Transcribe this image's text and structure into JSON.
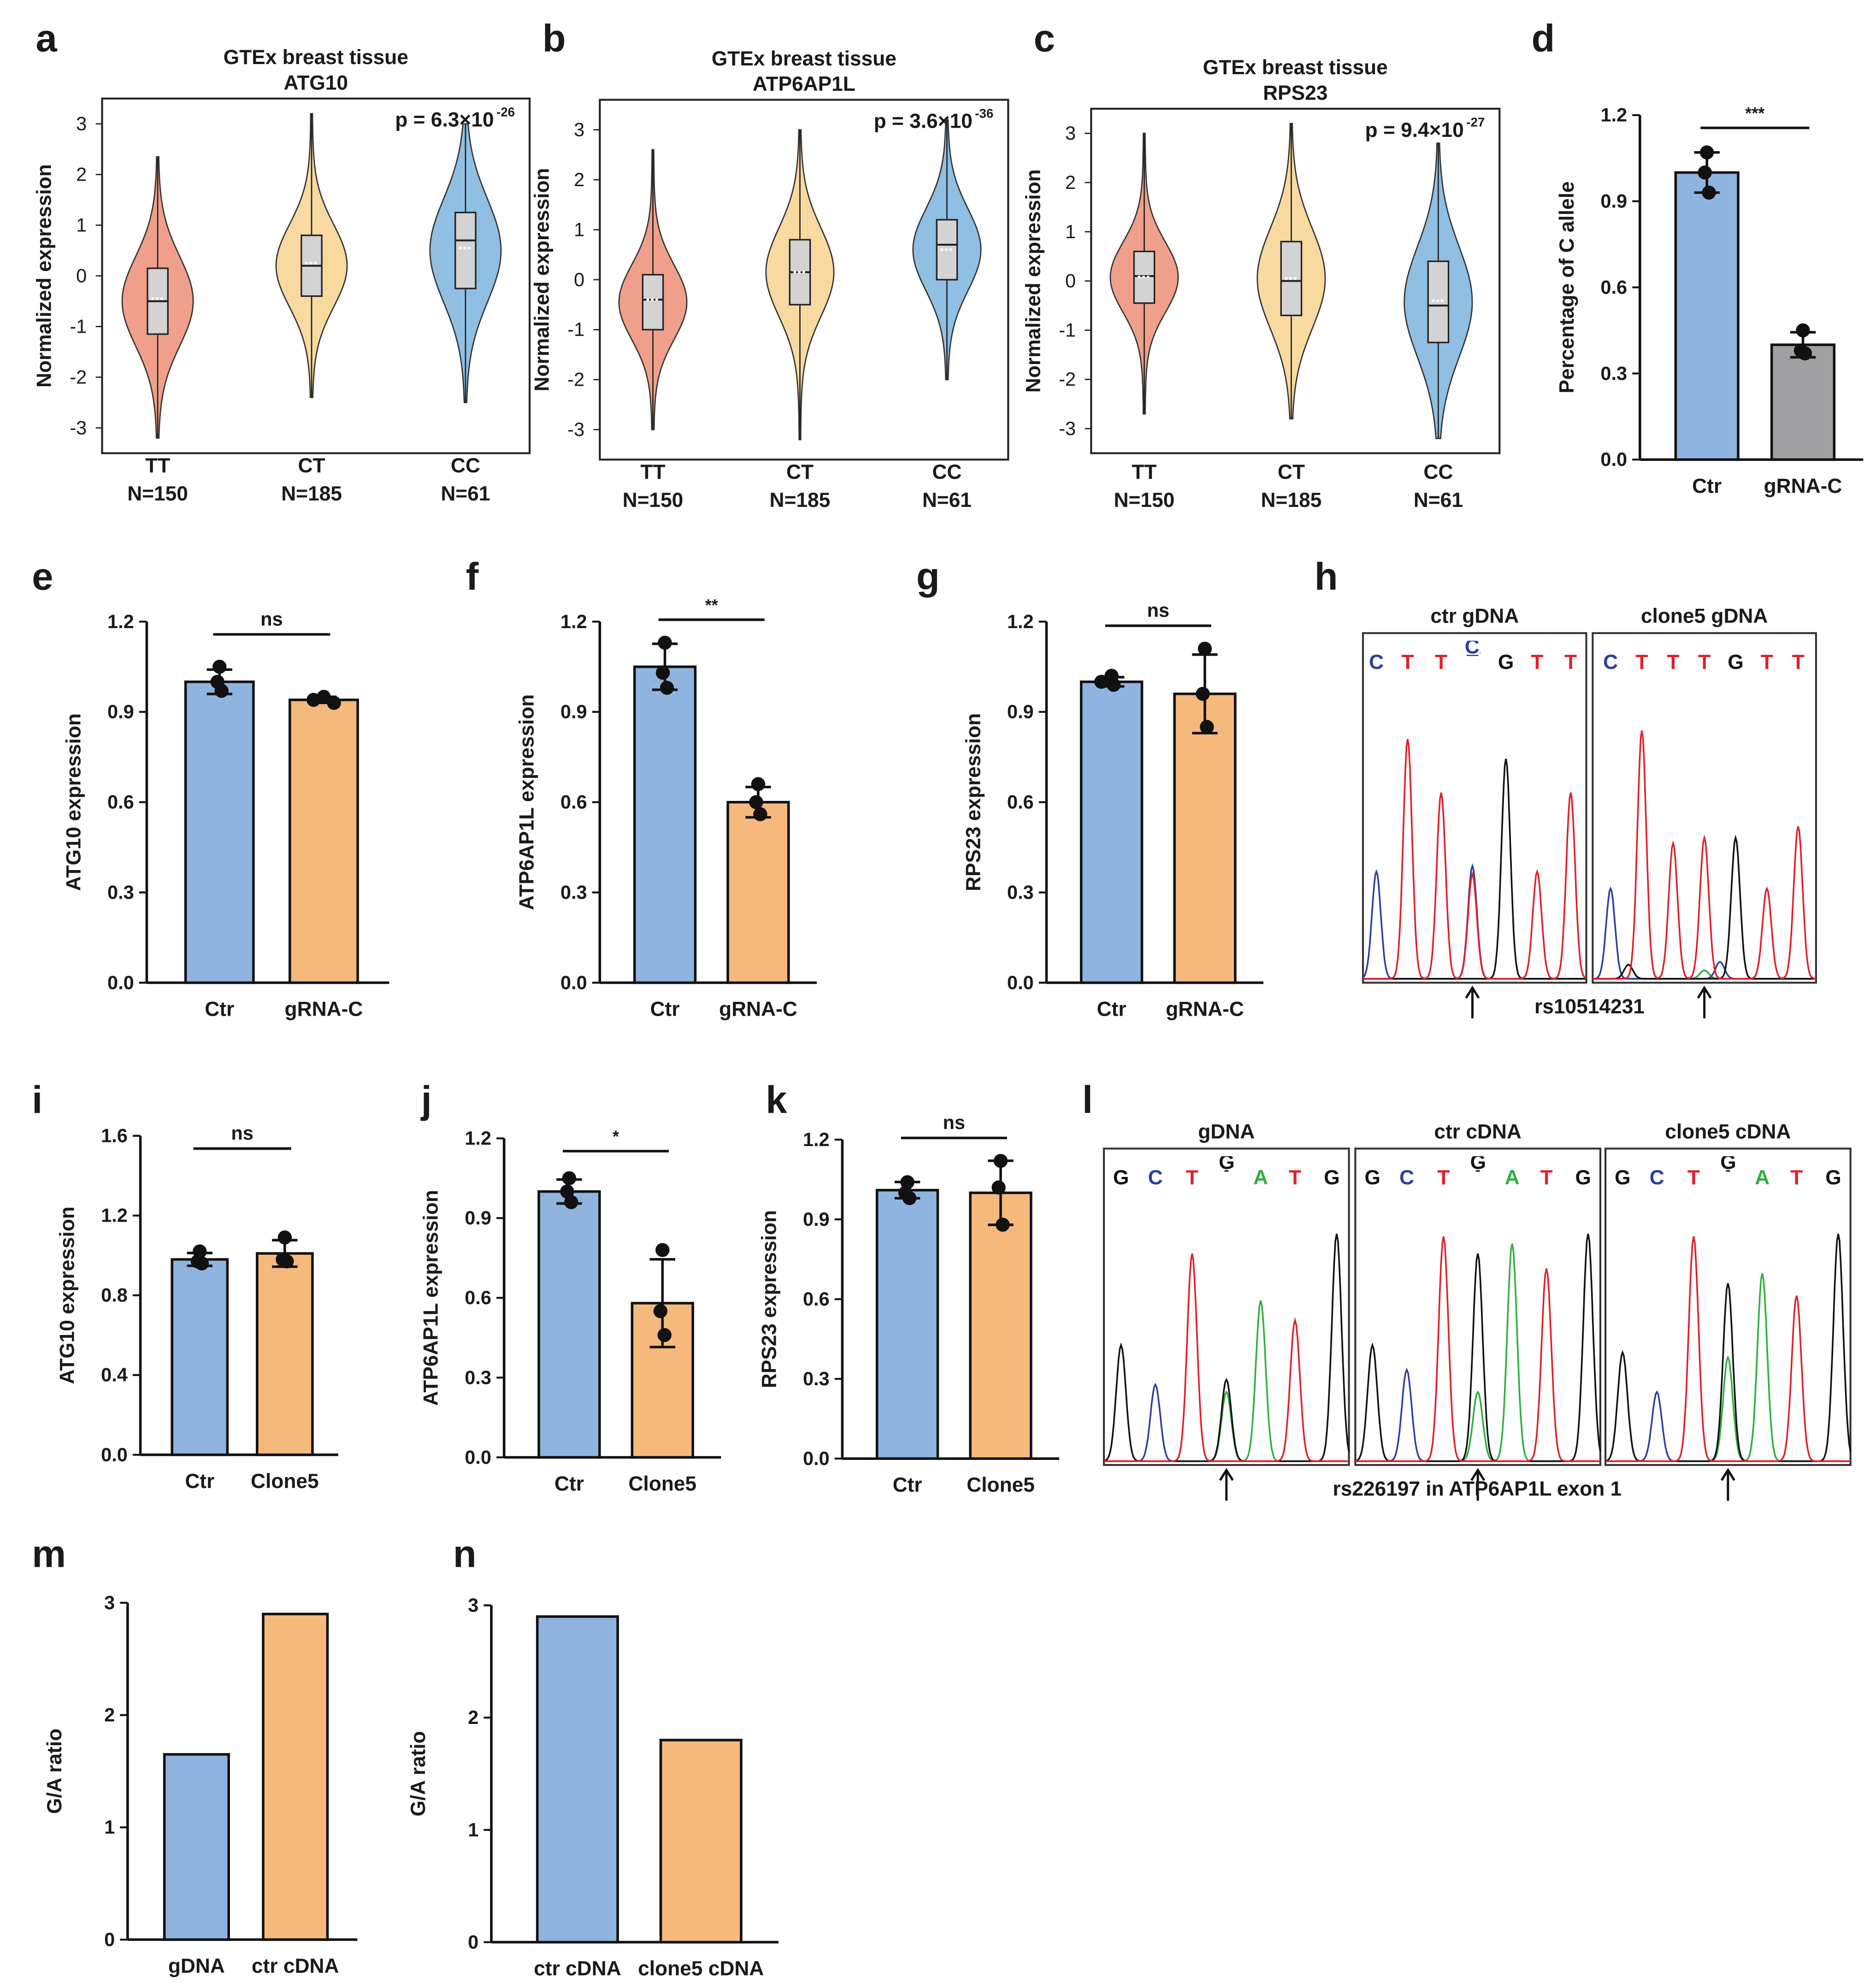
{
  "colors": {
    "blue": "#8fb4e0",
    "orange": "#f5b97b",
    "gray": "#a0a0a2",
    "tt": "#f0a08a",
    "ct": "#f8d9a0",
    "cc": "#8fbfe3",
    "baseC": "#2b3ea0",
    "baseT": "#e0202a",
    "baseG": "#111111",
    "baseA": "#2fae3f"
  },
  "chart_data": [
    {
      "id": "a",
      "letter": "a",
      "type": "violin",
      "title": [
        "GTEx breast tissue",
        "ATG10"
      ],
      "ylabel": "Normalized expression",
      "p_value": "p = 6.3×10",
      "p_exp": "-26",
      "ylim": [
        -3.5,
        3.5
      ],
      "ticks": [
        -3,
        -2,
        -1,
        0,
        1,
        2,
        3
      ],
      "groups": [
        {
          "label": "TT",
          "n": "N=150",
          "min": -3.2,
          "q1": -1.15,
          "median": -0.5,
          "q3": 0.15,
          "max": 2.35,
          "mean": -0.45
        },
        {
          "label": "CT",
          "n": "N=185",
          "min": -2.4,
          "q1": -0.4,
          "median": 0.2,
          "q3": 0.8,
          "max": 3.2,
          "mean": 0.25
        },
        {
          "label": "CC",
          "n": "N=61",
          "min": -2.5,
          "q1": -0.25,
          "median": 0.7,
          "q3": 1.25,
          "max": 3.0,
          "mean": 0.55
        }
      ]
    },
    {
      "id": "b",
      "letter": "b",
      "type": "violin",
      "title": [
        "GTEx breast tissue",
        "ATP6AP1L"
      ],
      "ylabel": "Normalized expression",
      "p_value": "p = 3.6×10",
      "p_exp": "-36",
      "ylim": [
        -3.6,
        3.6
      ],
      "ticks": [
        -3,
        -2,
        -1,
        0,
        1,
        2,
        3
      ],
      "groups": [
        {
          "label": "TT",
          "n": "N=150",
          "min": -3.0,
          "q1": -1.0,
          "median": -0.4,
          "q3": 0.1,
          "max": 2.6,
          "mean": -0.4
        },
        {
          "label": "CT",
          "n": "N=185",
          "min": -3.2,
          "q1": -0.5,
          "median": 0.15,
          "q3": 0.8,
          "max": 3.0,
          "mean": 0.15
        },
        {
          "label": "CC",
          "n": "N=61",
          "min": -2.0,
          "q1": 0.0,
          "median": 0.7,
          "q3": 1.2,
          "max": 3.2,
          "mean": 0.6
        }
      ]
    },
    {
      "id": "c",
      "letter": "c",
      "type": "violin",
      "title": [
        "GTEx breast tissue",
        "RPS23"
      ],
      "ylabel": "Normalized expression",
      "p_value": "p = 9.4×10",
      "p_exp": "-27",
      "ylim": [
        -3.5,
        3.5
      ],
      "ticks": [
        -3,
        -2,
        -1,
        0,
        1,
        2,
        3
      ],
      "groups": [
        {
          "label": "TT",
          "n": "N=150",
          "min": -2.7,
          "q1": -0.45,
          "median": 0.1,
          "q3": 0.6,
          "max": 3.0,
          "mean": 0.08
        },
        {
          "label": "CT",
          "n": "N=185",
          "min": -2.8,
          "q1": -0.7,
          "median": 0.0,
          "q3": 0.8,
          "max": 3.2,
          "mean": 0.05
        },
        {
          "label": "CC",
          "n": "N=61",
          "min": -3.2,
          "q1": -1.25,
          "median": -0.5,
          "q3": 0.4,
          "max": 2.8,
          "mean": -0.4
        }
      ]
    },
    {
      "id": "d",
      "letter": "d",
      "type": "bar",
      "ylabel": "Percentage of C allele",
      "ylim": [
        0,
        1.2
      ],
      "ticks": [
        "0.0",
        "0.3",
        "0.6",
        "0.9",
        "1.2"
      ],
      "categories": [
        "Ctr",
        "gRNA-C"
      ],
      "values": [
        1.0,
        0.4
      ],
      "points": [
        [
          1.07,
          1.0,
          0.93
        ],
        [
          0.45,
          0.38,
          0.37
        ]
      ],
      "bar_colors": [
        "blue",
        "gray"
      ],
      "significance": "***"
    },
    {
      "id": "e",
      "letter": "e",
      "type": "bar",
      "ylabel": "ATG10 expression",
      "ylim": [
        0,
        1.2
      ],
      "ticks": [
        "0.0",
        "0.3",
        "0.6",
        "0.9",
        "1.2"
      ],
      "categories": [
        "Ctr",
        "gRNA-C"
      ],
      "values": [
        1.0,
        0.94
      ],
      "points": [
        [
          1.05,
          1.0,
          0.97
        ],
        [
          0.95,
          0.94,
          0.93
        ]
      ],
      "bar_colors": [
        "blue",
        "orange"
      ],
      "significance": "ns"
    },
    {
      "id": "f",
      "letter": "f",
      "type": "bar",
      "ylabel": "ATP6AP1L expression",
      "ylim": [
        0,
        1.2
      ],
      "ticks": [
        "0.0",
        "0.3",
        "0.6",
        "0.9",
        "1.2"
      ],
      "categories": [
        "Ctr",
        "gRNA-C"
      ],
      "values": [
        1.05,
        0.6
      ],
      "points": [
        [
          1.13,
          1.03,
          0.98
        ],
        [
          0.66,
          0.6,
          0.56
        ]
      ],
      "bar_colors": [
        "blue",
        "orange"
      ],
      "significance": "**"
    },
    {
      "id": "g",
      "letter": "g",
      "type": "bar",
      "ylabel": "RPS23 expression",
      "ylim": [
        0,
        1.2
      ],
      "ticks": [
        "0.0",
        "0.3",
        "0.6",
        "0.9",
        "1.2"
      ],
      "categories": [
        "Ctr",
        "gRNA-C"
      ],
      "values": [
        1.0,
        0.96
      ],
      "points": [
        [
          1.02,
          1.0,
          0.99
        ],
        [
          1.11,
          0.96,
          0.85
        ]
      ],
      "bar_colors": [
        "blue",
        "orange"
      ],
      "significance": "ns"
    },
    {
      "id": "h",
      "letter": "h",
      "type": "chromatogram",
      "snp_label": "rs10514231",
      "frames": [
        {
          "title": "ctr gDNA",
          "arrow_at": 0.49,
          "bases": [
            [
              "C",
              0.06
            ],
            [
              "T",
              0.2
            ],
            [
              "T",
              0.35
            ],
            [
              "C/T",
              0.49
            ],
            [
              "G",
              0.64
            ],
            [
              "T",
              0.78
            ],
            [
              "T",
              0.93
            ]
          ],
          "peaks": [
            [
              "C",
              0.06,
              0.38
            ],
            [
              "T",
              0.2,
              0.85
            ],
            [
              "T",
              0.35,
              0.66
            ],
            [
              "C",
              0.49,
              0.4
            ],
            [
              "T",
              0.49,
              0.37
            ],
            [
              "G",
              0.64,
              0.78
            ],
            [
              "T",
              0.78,
              0.38
            ],
            [
              "T",
              0.93,
              0.66
            ]
          ]
        },
        {
          "title": "clone5 gDNA",
          "arrow_at": 0.5,
          "bases": [
            [
              "C",
              0.08
            ],
            [
              "T",
              0.22
            ],
            [
              "T",
              0.36
            ],
            [
              "T",
              0.5
            ],
            [
              "G",
              0.64
            ],
            [
              "T",
              0.78
            ],
            [
              "T",
              0.92
            ]
          ],
          "peaks": [
            [
              "C",
              0.08,
              0.32
            ],
            [
              "T",
              0.22,
              0.88
            ],
            [
              "T",
              0.36,
              0.48
            ],
            [
              "T",
              0.5,
              0.5
            ],
            [
              "G",
              0.64,
              0.5
            ],
            [
              "T",
              0.78,
              0.32
            ],
            [
              "T",
              0.92,
              0.54
            ],
            [
              "G",
              0.16,
              0.05
            ],
            [
              "C",
              0.57,
              0.06
            ],
            [
              "A",
              0.5,
              0.03
            ]
          ]
        }
      ]
    },
    {
      "id": "i",
      "letter": "i",
      "type": "bar",
      "ylabel": "ATG10 expression",
      "ylim": [
        0,
        1.6
      ],
      "ticks": [
        "0.0",
        "0.4",
        "0.8",
        "1.2",
        "1.6"
      ],
      "categories": [
        "Ctr",
        "Clone5"
      ],
      "values": [
        0.98,
        1.01
      ],
      "points": [
        [
          1.02,
          0.97,
          0.96
        ],
        [
          1.09,
          0.98,
          0.97
        ]
      ],
      "bar_colors": [
        "blue",
        "orange"
      ],
      "significance": "ns"
    },
    {
      "id": "j",
      "letter": "j",
      "type": "bar",
      "ylabel": "ATP6AP1L expression",
      "ylim": [
        0,
        1.2
      ],
      "ticks": [
        "0.0",
        "0.3",
        "0.6",
        "0.9",
        "1.2"
      ],
      "categories": [
        "Ctr",
        "Clone5"
      ],
      "values": [
        1.0,
        0.58
      ],
      "points": [
        [
          1.05,
          1.0,
          0.96
        ],
        [
          0.78,
          0.55,
          0.46
        ]
      ],
      "bar_colors": [
        "blue",
        "orange"
      ],
      "significance": "*"
    },
    {
      "id": "k",
      "letter": "k",
      "type": "bar",
      "ylabel": "RPS23 expression",
      "ylim": [
        0,
        1.2
      ],
      "ticks": [
        "0.0",
        "0.3",
        "0.6",
        "0.9",
        "1.2"
      ],
      "categories": [
        "Ctr",
        "Clone5"
      ],
      "values": [
        1.01,
        1.0
      ],
      "points": [
        [
          1.04,
          1.0,
          0.98
        ],
        [
          1.12,
          1.02,
          0.88
        ]
      ],
      "bar_colors": [
        "blue",
        "orange"
      ],
      "significance": "ns"
    },
    {
      "id": "l",
      "letter": "l",
      "type": "chromatogram",
      "snp_label": "rs226197 in ATP6AP1L exon 1",
      "frames": [
        {
          "title": "gDNA",
          "arrow_at": 0.5,
          "bases": [
            [
              "G",
              0.07
            ],
            [
              "C",
              0.21
            ],
            [
              "T",
              0.36
            ],
            [
              "G/A",
              0.5
            ],
            [
              "A",
              0.64
            ],
            [
              "T",
              0.78
            ],
            [
              "G",
              0.93
            ]
          ],
          "peaks": [
            [
              "G",
              0.07,
              0.47
            ],
            [
              "C",
              0.21,
              0.31
            ],
            [
              "T",
              0.36,
              0.84
            ],
            [
              "G",
              0.5,
              0.33
            ],
            [
              "A",
              0.5,
              0.28
            ],
            [
              "A",
              0.64,
              0.65
            ],
            [
              "T",
              0.78,
              0.57
            ],
            [
              "G",
              0.95,
              0.92
            ]
          ]
        },
        {
          "title": "ctr cDNA",
          "arrow_at": 0.5,
          "bases": [
            [
              "G",
              0.07
            ],
            [
              "C",
              0.21
            ],
            [
              "T",
              0.36
            ],
            [
              "G/A",
              0.5
            ],
            [
              "A",
              0.64
            ],
            [
              "T",
              0.78
            ],
            [
              "G",
              0.93
            ]
          ],
          "peaks": [
            [
              "G",
              0.07,
              0.47
            ],
            [
              "C",
              0.21,
              0.37
            ],
            [
              "T",
              0.36,
              0.91
            ],
            [
              "G",
              0.5,
              0.84
            ],
            [
              "A",
              0.5,
              0.28
            ],
            [
              "A",
              0.64,
              0.88
            ],
            [
              "T",
              0.78,
              0.78
            ],
            [
              "G",
              0.95,
              0.92
            ]
          ]
        },
        {
          "title": "clone5 cDNA",
          "arrow_at": 0.5,
          "bases": [
            [
              "G",
              0.07
            ],
            [
              "C",
              0.21
            ],
            [
              "T",
              0.36
            ],
            [
              "G/A",
              0.5
            ],
            [
              "A",
              0.64
            ],
            [
              "T",
              0.78
            ],
            [
              "G",
              0.93
            ]
          ],
          "peaks": [
            [
              "G",
              0.07,
              0.44
            ],
            [
              "C",
              0.21,
              0.28
            ],
            [
              "T",
              0.36,
              0.91
            ],
            [
              "G",
              0.5,
              0.72
            ],
            [
              "A",
              0.5,
              0.42
            ],
            [
              "A",
              0.64,
              0.76
            ],
            [
              "T",
              0.78,
              0.67
            ],
            [
              "G",
              0.95,
              0.92
            ]
          ]
        }
      ]
    },
    {
      "id": "m",
      "letter": "m",
      "type": "bar",
      "ylabel": "G/A ratio",
      "ylim": [
        0,
        3
      ],
      "ticks": [
        "0",
        "1",
        "2",
        "3"
      ],
      "categories": [
        "gDNA",
        "ctr cDNA"
      ],
      "values": [
        1.65,
        2.9
      ],
      "points": [],
      "bar_colors": [
        "blue",
        "orange"
      ],
      "significance": ""
    },
    {
      "id": "n",
      "letter": "n",
      "type": "bar",
      "ylabel": "G/A ratio",
      "ylim": [
        0,
        3
      ],
      "ticks": [
        "0",
        "1",
        "2",
        "3"
      ],
      "categories": [
        "ctr cDNA",
        "clone5 cDNA"
      ],
      "values": [
        2.9,
        1.8
      ],
      "points": [],
      "bar_colors": [
        "blue",
        "orange"
      ],
      "significance": ""
    }
  ]
}
